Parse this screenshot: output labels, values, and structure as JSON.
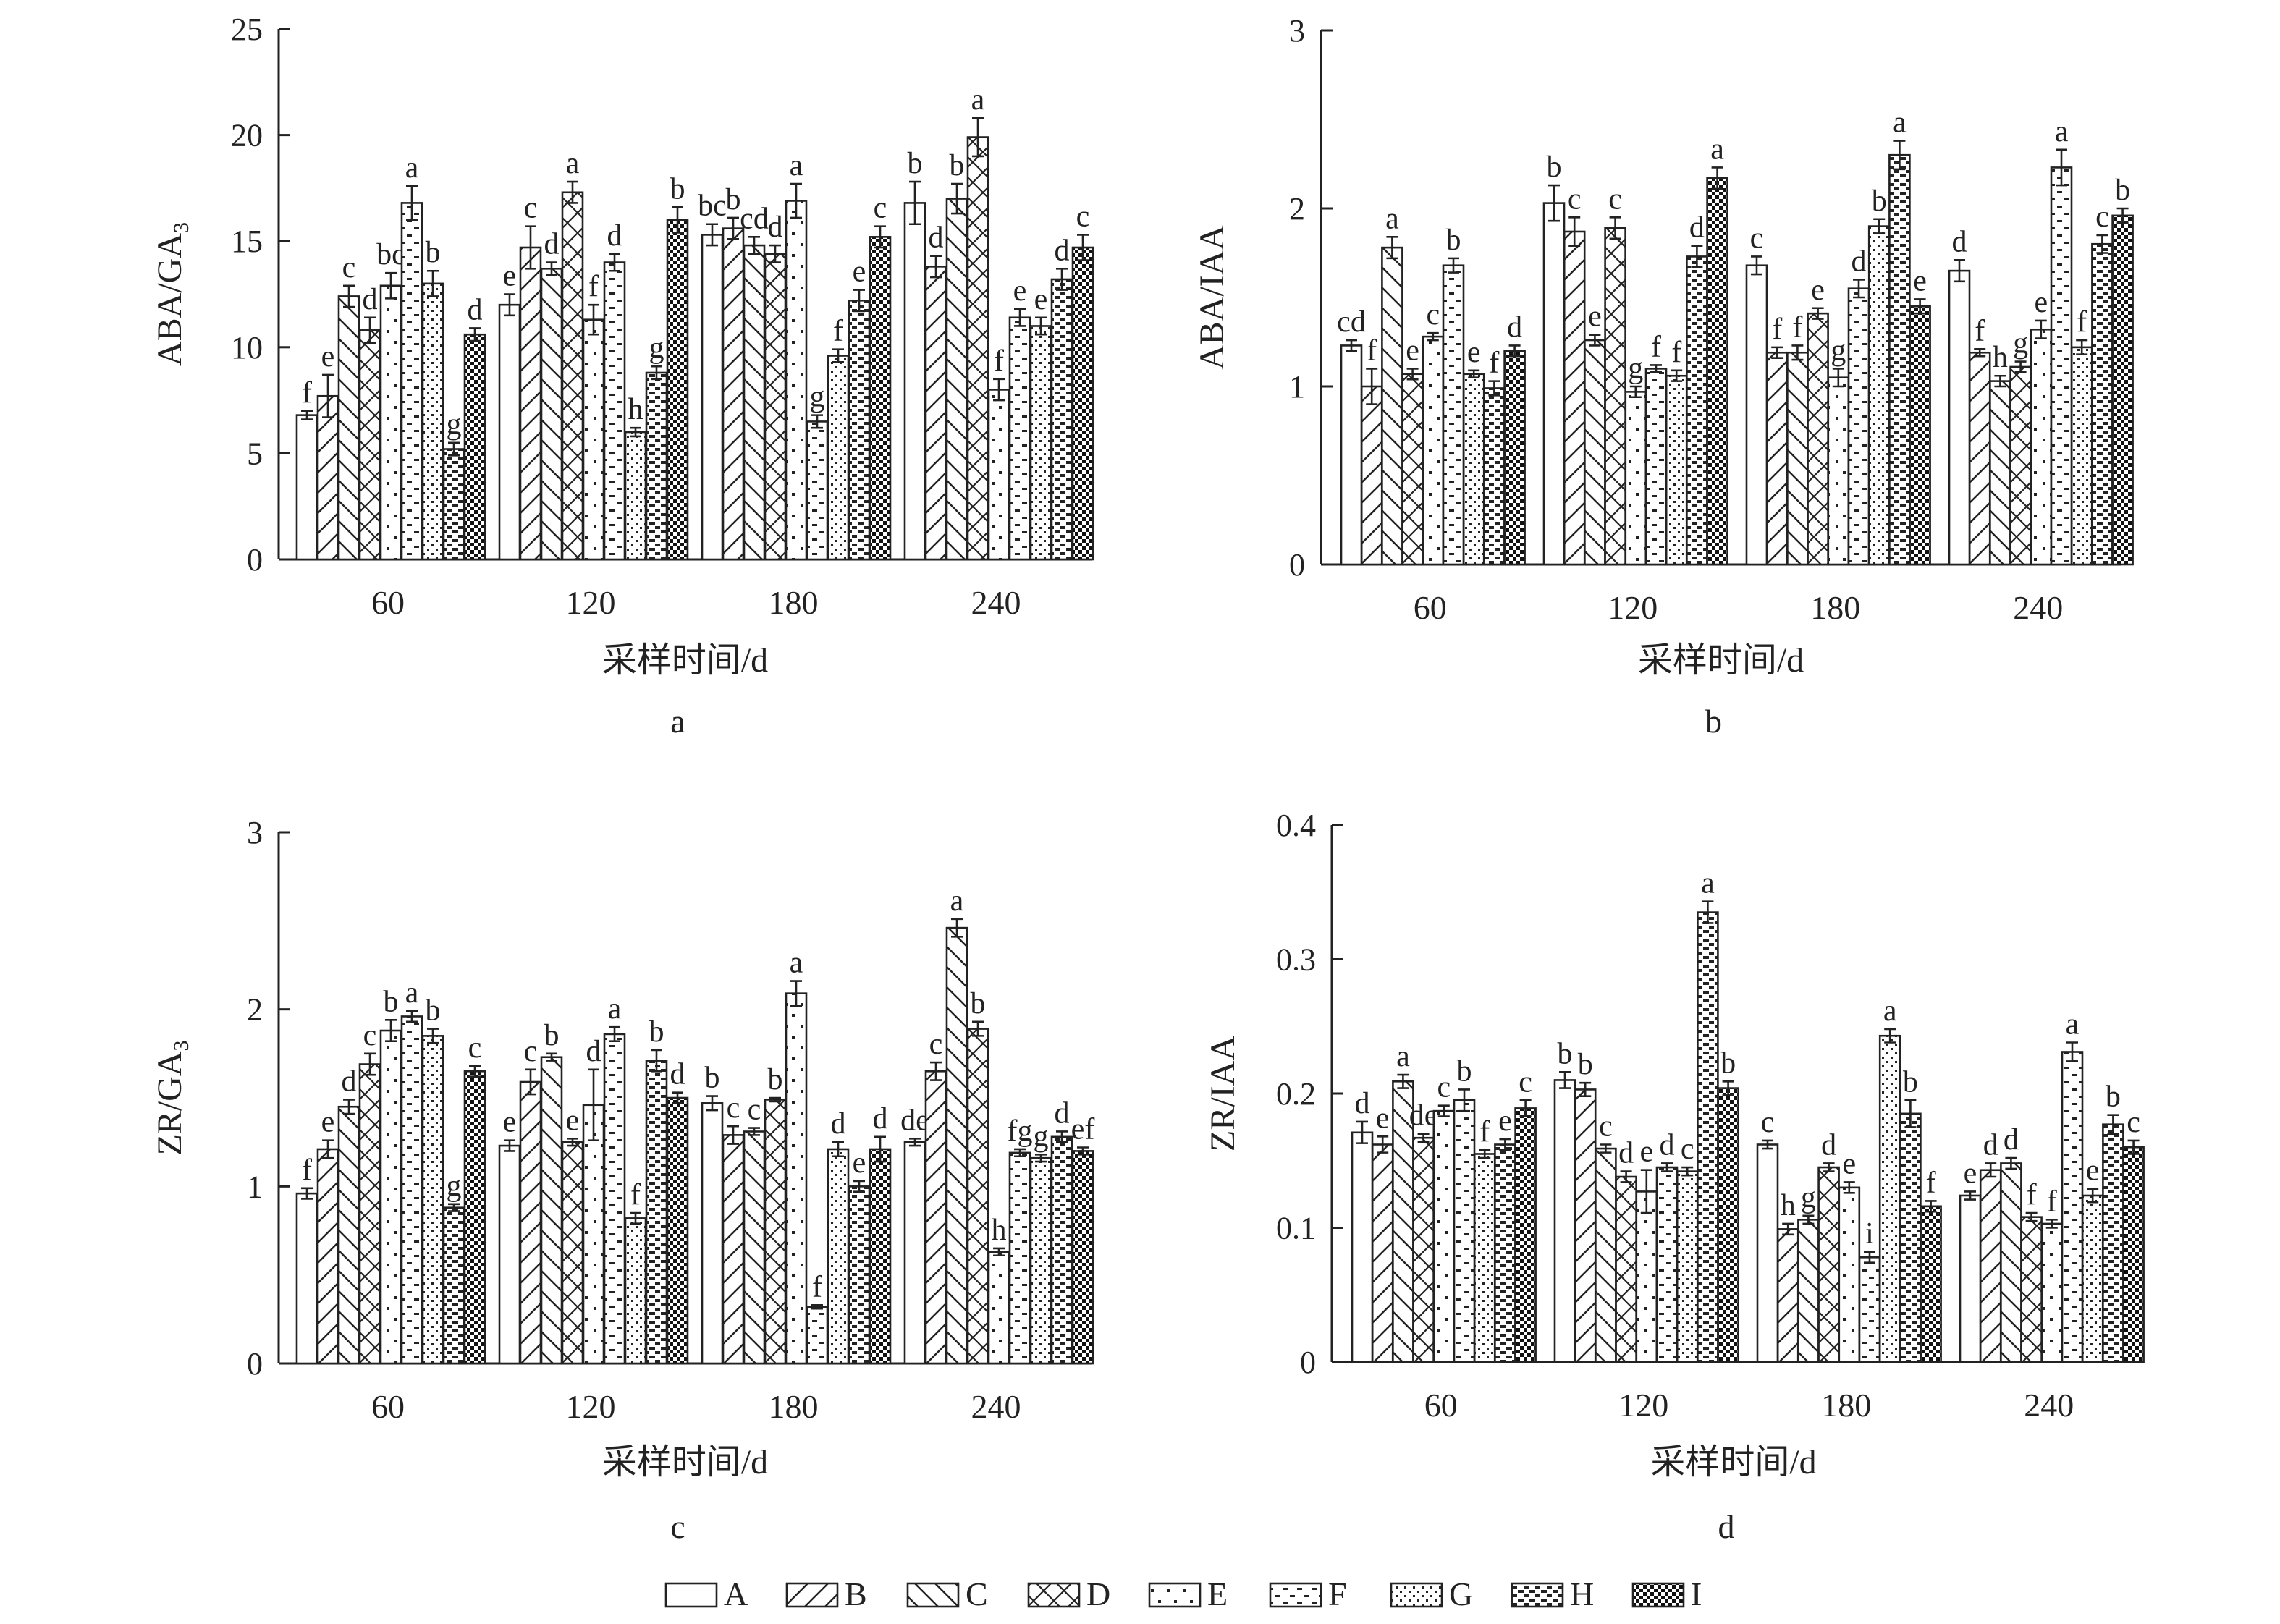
{
  "legend_items": [
    {
      "key": "A",
      "label": "A",
      "pattern": "plain"
    },
    {
      "key": "B",
      "label": "B",
      "pattern": "diag-right"
    },
    {
      "key": "C",
      "label": "C",
      "pattern": "diag-left"
    },
    {
      "key": "D",
      "label": "D",
      "pattern": "cross"
    },
    {
      "key": "E",
      "label": "E",
      "pattern": "dots-sparse"
    },
    {
      "key": "F",
      "label": "F",
      "pattern": "dashes"
    },
    {
      "key": "G",
      "label": "G",
      "pattern": "dots-dense"
    },
    {
      "key": "H",
      "label": "H",
      "pattern": "bricks"
    },
    {
      "key": "I",
      "label": "I",
      "pattern": "checker"
    }
  ],
  "chart_data": [
    {
      "type": "bar",
      "panel_label": "a",
      "ylabel_main": "ABA/GA",
      "ylabel_sub": "3",
      "xlabel": "采样时间/d",
      "ylim": [
        0,
        25
      ],
      "yticks": [
        "0",
        "5",
        "10",
        "15",
        "20",
        "25"
      ],
      "categories": [
        "60",
        "120",
        "180",
        "240"
      ],
      "series": [
        {
          "name": "A",
          "values": [
            6.8,
            12.0,
            15.3,
            16.8
          ],
          "errors": [
            0.2,
            0.5,
            0.5,
            1.0
          ],
          "letters": [
            "f",
            "e",
            "bc",
            "b"
          ]
        },
        {
          "name": "B",
          "values": [
            7.7,
            14.7,
            15.6,
            13.8
          ],
          "errors": [
            1.0,
            1.0,
            0.5,
            0.5
          ],
          "letters": [
            "e",
            "c",
            "b",
            "d"
          ]
        },
        {
          "name": "C",
          "values": [
            12.4,
            13.7,
            14.8,
            17.0
          ],
          "errors": [
            0.5,
            0.3,
            0.4,
            0.7
          ],
          "letters": [
            "c",
            "d",
            "cd",
            "b"
          ]
        },
        {
          "name": "D",
          "values": [
            10.8,
            17.3,
            14.4,
            19.9
          ],
          "errors": [
            0.6,
            0.5,
            0.4,
            0.9
          ],
          "letters": [
            "d",
            "a",
            "d",
            "a"
          ]
        },
        {
          "name": "E",
          "values": [
            12.9,
            11.3,
            16.9,
            8.0
          ],
          "errors": [
            0.6,
            0.7,
            0.8,
            0.5
          ],
          "letters": [
            "bc",
            "f",
            "a",
            "f"
          ]
        },
        {
          "name": "F",
          "values": [
            16.8,
            14.0,
            6.5,
            11.4
          ],
          "errors": [
            0.8,
            0.4,
            0.3,
            0.4
          ],
          "letters": [
            "a",
            "d",
            "g",
            "e"
          ]
        },
        {
          "name": "G",
          "values": [
            13.0,
            6.0,
            9.6,
            11.0
          ],
          "errors": [
            0.6,
            0.2,
            0.3,
            0.4
          ],
          "letters": [
            "b",
            "h",
            "f",
            "e"
          ]
        },
        {
          "name": "H",
          "values": [
            5.2,
            8.8,
            12.2,
            13.2
          ],
          "errors": [
            0.3,
            0.3,
            0.5,
            0.5
          ],
          "letters": [
            "g",
            "g",
            "e",
            "d"
          ]
        },
        {
          "name": "I",
          "values": [
            10.6,
            16.0,
            15.2,
            14.7
          ],
          "errors": [
            0.3,
            0.6,
            0.5,
            0.6
          ],
          "letters": [
            "d",
            "b",
            "c",
            "c"
          ]
        }
      ]
    },
    {
      "type": "bar",
      "panel_label": "b",
      "ylabel_main": "ABA/IAA",
      "ylabel_sub": "",
      "xlabel": "采样时间/d",
      "ylim": [
        0,
        3
      ],
      "yticks": [
        "0",
        "1",
        "2",
        "3"
      ],
      "categories": [
        "60",
        "120",
        "180",
        "240"
      ],
      "series": [
        {
          "name": "A",
          "values": [
            1.23,
            2.03,
            1.68,
            1.65
          ],
          "errors": [
            0.03,
            0.1,
            0.05,
            0.06
          ],
          "letters": [
            "cd",
            "b",
            "c",
            "d"
          ]
        },
        {
          "name": "B",
          "values": [
            1.0,
            1.87,
            1.19,
            1.19
          ],
          "errors": [
            0.1,
            0.08,
            0.03,
            0.02
          ],
          "letters": [
            "f",
            "c",
            "f",
            "f"
          ]
        },
        {
          "name": "C",
          "values": [
            1.78,
            1.26,
            1.19,
            1.03
          ],
          "errors": [
            0.06,
            0.03,
            0.04,
            0.03
          ],
          "letters": [
            "a",
            "e",
            "f",
            "h"
          ]
        },
        {
          "name": "D",
          "values": [
            1.07,
            1.89,
            1.41,
            1.11
          ],
          "errors": [
            0.03,
            0.06,
            0.03,
            0.03
          ],
          "letters": [
            "e",
            "c",
            "e",
            "g"
          ]
        },
        {
          "name": "E",
          "values": [
            1.28,
            0.97,
            1.05,
            1.32
          ],
          "errors": [
            0.02,
            0.03,
            0.05,
            0.05
          ],
          "letters": [
            "c",
            "g",
            "g",
            "e"
          ]
        },
        {
          "name": "F",
          "values": [
            1.68,
            1.1,
            1.55,
            2.23
          ],
          "errors": [
            0.04,
            0.02,
            0.05,
            0.1
          ],
          "letters": [
            "b",
            "f",
            "d",
            "a"
          ]
        },
        {
          "name": "G",
          "values": [
            1.07,
            1.06,
            1.9,
            1.22
          ],
          "errors": [
            0.02,
            0.03,
            0.04,
            0.04
          ],
          "letters": [
            "e",
            "f",
            "b",
            "f"
          ]
        },
        {
          "name": "H",
          "values": [
            0.99,
            1.73,
            2.3,
            1.8
          ],
          "errors": [
            0.04,
            0.06,
            0.08,
            0.05
          ],
          "letters": [
            "f",
            "d",
            "a",
            "c"
          ]
        },
        {
          "name": "I",
          "values": [
            1.2,
            2.17,
            1.45,
            1.96
          ],
          "errors": [
            0.03,
            0.06,
            0.04,
            0.04
          ],
          "letters": [
            "d",
            "a",
            "e",
            "b"
          ]
        }
      ]
    },
    {
      "type": "bar",
      "panel_label": "c",
      "ylabel_main": "ZR/GA",
      "ylabel_sub": "3",
      "xlabel": "采样时间/d",
      "ylim": [
        0,
        3
      ],
      "yticks": [
        "0",
        "1",
        "2",
        "3"
      ],
      "categories": [
        "60",
        "120",
        "180",
        "240"
      ],
      "series": [
        {
          "name": "A",
          "values": [
            0.96,
            1.23,
            1.47,
            1.25
          ],
          "errors": [
            0.03,
            0.03,
            0.04,
            0.02
          ],
          "letters": [
            "f",
            "e",
            "b",
            "de"
          ]
        },
        {
          "name": "B",
          "values": [
            1.21,
            1.59,
            1.29,
            1.65
          ],
          "errors": [
            0.05,
            0.07,
            0.05,
            0.05
          ],
          "letters": [
            "e",
            "c",
            "c",
            "c"
          ]
        },
        {
          "name": "C",
          "values": [
            1.45,
            1.73,
            1.31,
            2.46
          ],
          "errors": [
            0.04,
            0.02,
            0.02,
            0.05
          ],
          "letters": [
            "d",
            "b",
            "c",
            "a"
          ]
        },
        {
          "name": "D",
          "values": [
            1.69,
            1.25,
            1.49,
            1.89
          ],
          "errors": [
            0.06,
            0.02,
            0.01,
            0.04
          ],
          "letters": [
            "c",
            "e",
            "b",
            "b"
          ]
        },
        {
          "name": "E",
          "values": [
            1.88,
            1.46,
            2.09,
            0.63
          ],
          "errors": [
            0.06,
            0.2,
            0.07,
            0.02
          ],
          "letters": [
            "b",
            "d",
            "a",
            "h"
          ]
        },
        {
          "name": "F",
          "values": [
            1.96,
            1.86,
            0.32,
            1.19
          ],
          "errors": [
            0.03,
            0.04,
            0.01,
            0.02
          ],
          "letters": [
            "a",
            "a",
            "f",
            "fg"
          ]
        },
        {
          "name": "G",
          "values": [
            1.85,
            0.82,
            1.21,
            1.16
          ],
          "errors": [
            0.04,
            0.03,
            0.04,
            0.02
          ],
          "letters": [
            "b",
            "f",
            "d",
            "g"
          ]
        },
        {
          "name": "H",
          "values": [
            0.88,
            1.71,
            1.0,
            1.28
          ],
          "errors": [
            0.02,
            0.06,
            0.03,
            0.03
          ],
          "letters": [
            "g",
            "b",
            "e",
            "d"
          ]
        },
        {
          "name": "I",
          "values": [
            1.65,
            1.5,
            1.21,
            1.2
          ],
          "errors": [
            0.03,
            0.03,
            0.07,
            0.02
          ],
          "letters": [
            "c",
            "d",
            "d",
            "ef"
          ]
        }
      ]
    },
    {
      "type": "bar",
      "panel_label": "d",
      "ylabel_main": "ZR/IAA",
      "ylabel_sub": "",
      "xlabel": "采样时间/d",
      "ylim": [
        0,
        0.4
      ],
      "yticks": [
        "0",
        "0.1",
        "0.2",
        "0.3",
        "0.4"
      ],
      "categories": [
        "60",
        "120",
        "180",
        "240"
      ],
      "series": [
        {
          "name": "A",
          "values": [
            0.171,
            0.21,
            0.162,
            0.124
          ],
          "errors": [
            0.008,
            0.006,
            0.003,
            0.003
          ],
          "letters": [
            "d",
            "b",
            "c",
            "e"
          ]
        },
        {
          "name": "B",
          "values": [
            0.162,
            0.203,
            0.099,
            0.143
          ],
          "errors": [
            0.006,
            0.005,
            0.004,
            0.005
          ],
          "letters": [
            "e",
            "b",
            "h",
            "d"
          ]
        },
        {
          "name": "C",
          "values": [
            0.209,
            0.159,
            0.106,
            0.148
          ],
          "errors": [
            0.005,
            0.003,
            0.003,
            0.004
          ],
          "letters": [
            "a",
            "c",
            "g",
            "d"
          ]
        },
        {
          "name": "D",
          "values": [
            0.167,
            0.138,
            0.145,
            0.108
          ],
          "errors": [
            0.003,
            0.004,
            0.003,
            0.003
          ],
          "letters": [
            "de",
            "d",
            "d",
            "f"
          ]
        },
        {
          "name": "E",
          "values": [
            0.187,
            0.127,
            0.13,
            0.103
          ],
          "errors": [
            0.004,
            0.016,
            0.004,
            0.003
          ],
          "letters": [
            "c",
            "e",
            "e",
            "f"
          ]
        },
        {
          "name": "F",
          "values": [
            0.195,
            0.145,
            0.078,
            0.231
          ],
          "errors": [
            0.008,
            0.003,
            0.004,
            0.007
          ],
          "letters": [
            "b",
            "d",
            "i",
            "a"
          ]
        },
        {
          "name": "G",
          "values": [
            0.155,
            0.142,
            0.243,
            0.124
          ],
          "errors": [
            0.003,
            0.003,
            0.005,
            0.005
          ],
          "letters": [
            "f",
            "c",
            "a",
            "e"
          ]
        },
        {
          "name": "H",
          "values": [
            0.162,
            0.335,
            0.185,
            0.177
          ],
          "errors": [
            0.004,
            0.008,
            0.01,
            0.007
          ],
          "letters": [
            "e",
            "a",
            "b",
            "b"
          ]
        },
        {
          "name": "I",
          "values": [
            0.189,
            0.204,
            0.116,
            0.16
          ],
          "errors": [
            0.006,
            0.005,
            0.004,
            0.005
          ],
          "letters": [
            "c",
            "b",
            "f",
            "c"
          ]
        }
      ]
    }
  ]
}
